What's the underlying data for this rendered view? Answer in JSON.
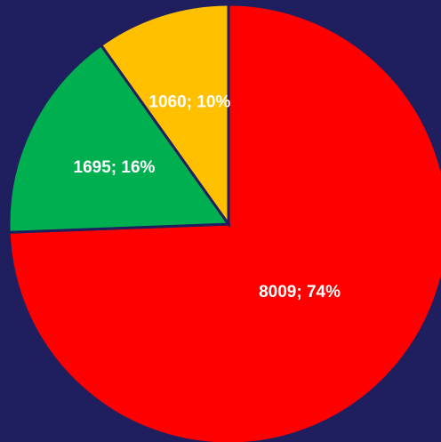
{
  "chart_data": {
    "type": "pie",
    "values": [
      8009,
      1695,
      1060
    ],
    "value_labels": [
      "8009; 74%",
      "1695; 16%",
      "1060; 10%"
    ],
    "colors": [
      "#ff0000",
      "#00b050",
      "#ffc000"
    ]
  }
}
